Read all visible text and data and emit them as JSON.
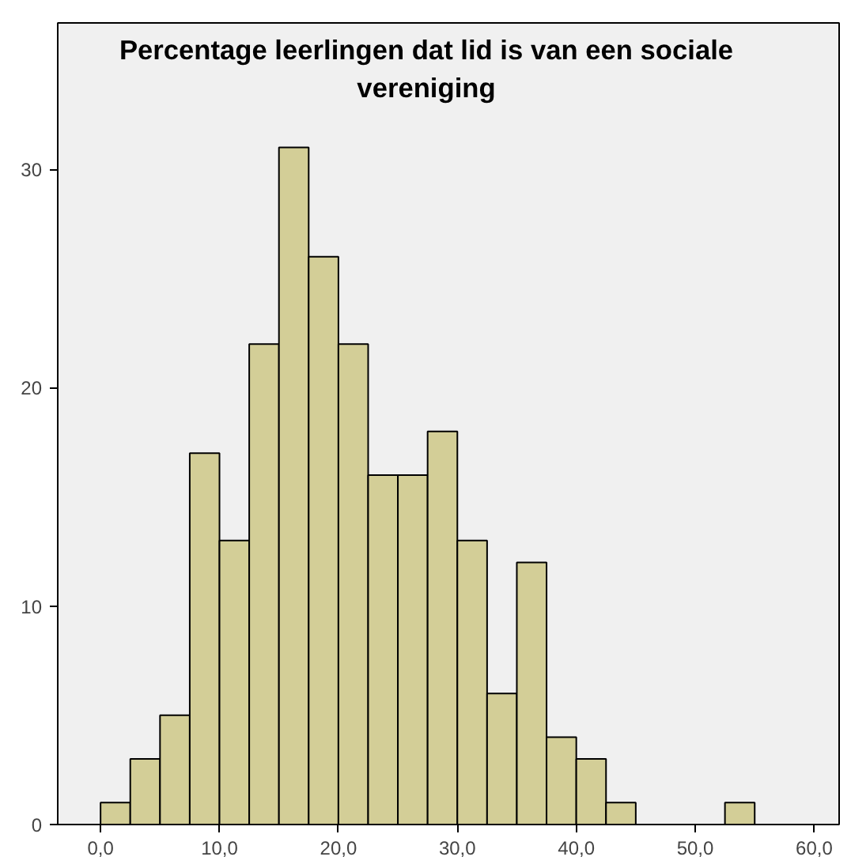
{
  "chart_data": {
    "type": "histogram",
    "title": "Percentage leerlingen dat lid is van een sociale vereniging",
    "bins": [
      0,
      2.5,
      5,
      7.5,
      10,
      12.5,
      15,
      17.5,
      20,
      22.5,
      25,
      27.5,
      30,
      32.5,
      35,
      37.5,
      40,
      42.5,
      45,
      47.5,
      50,
      52.5,
      55
    ],
    "values": [
      1,
      3,
      5,
      17,
      13,
      22,
      31,
      26,
      22,
      16,
      16,
      18,
      13,
      6,
      12,
      4,
      3,
      1,
      0,
      0,
      0,
      1
    ],
    "color": "#d3ce97",
    "xlim": [
      -3.6,
      62.1
    ],
    "ylim": [
      0,
      36.7
    ],
    "xticks": [
      {
        "value": 0,
        "label": "0,0"
      },
      {
        "value": 10,
        "label": "10,0"
      },
      {
        "value": 20,
        "label": "20,0"
      },
      {
        "value": 30,
        "label": "30,0"
      },
      {
        "value": 40,
        "label": "40,0"
      },
      {
        "value": 50,
        "label": "50,0"
      },
      {
        "value": 60,
        "label": "60,0"
      }
    ],
    "yticks": [
      0,
      10,
      20,
      30
    ],
    "grid": false
  }
}
